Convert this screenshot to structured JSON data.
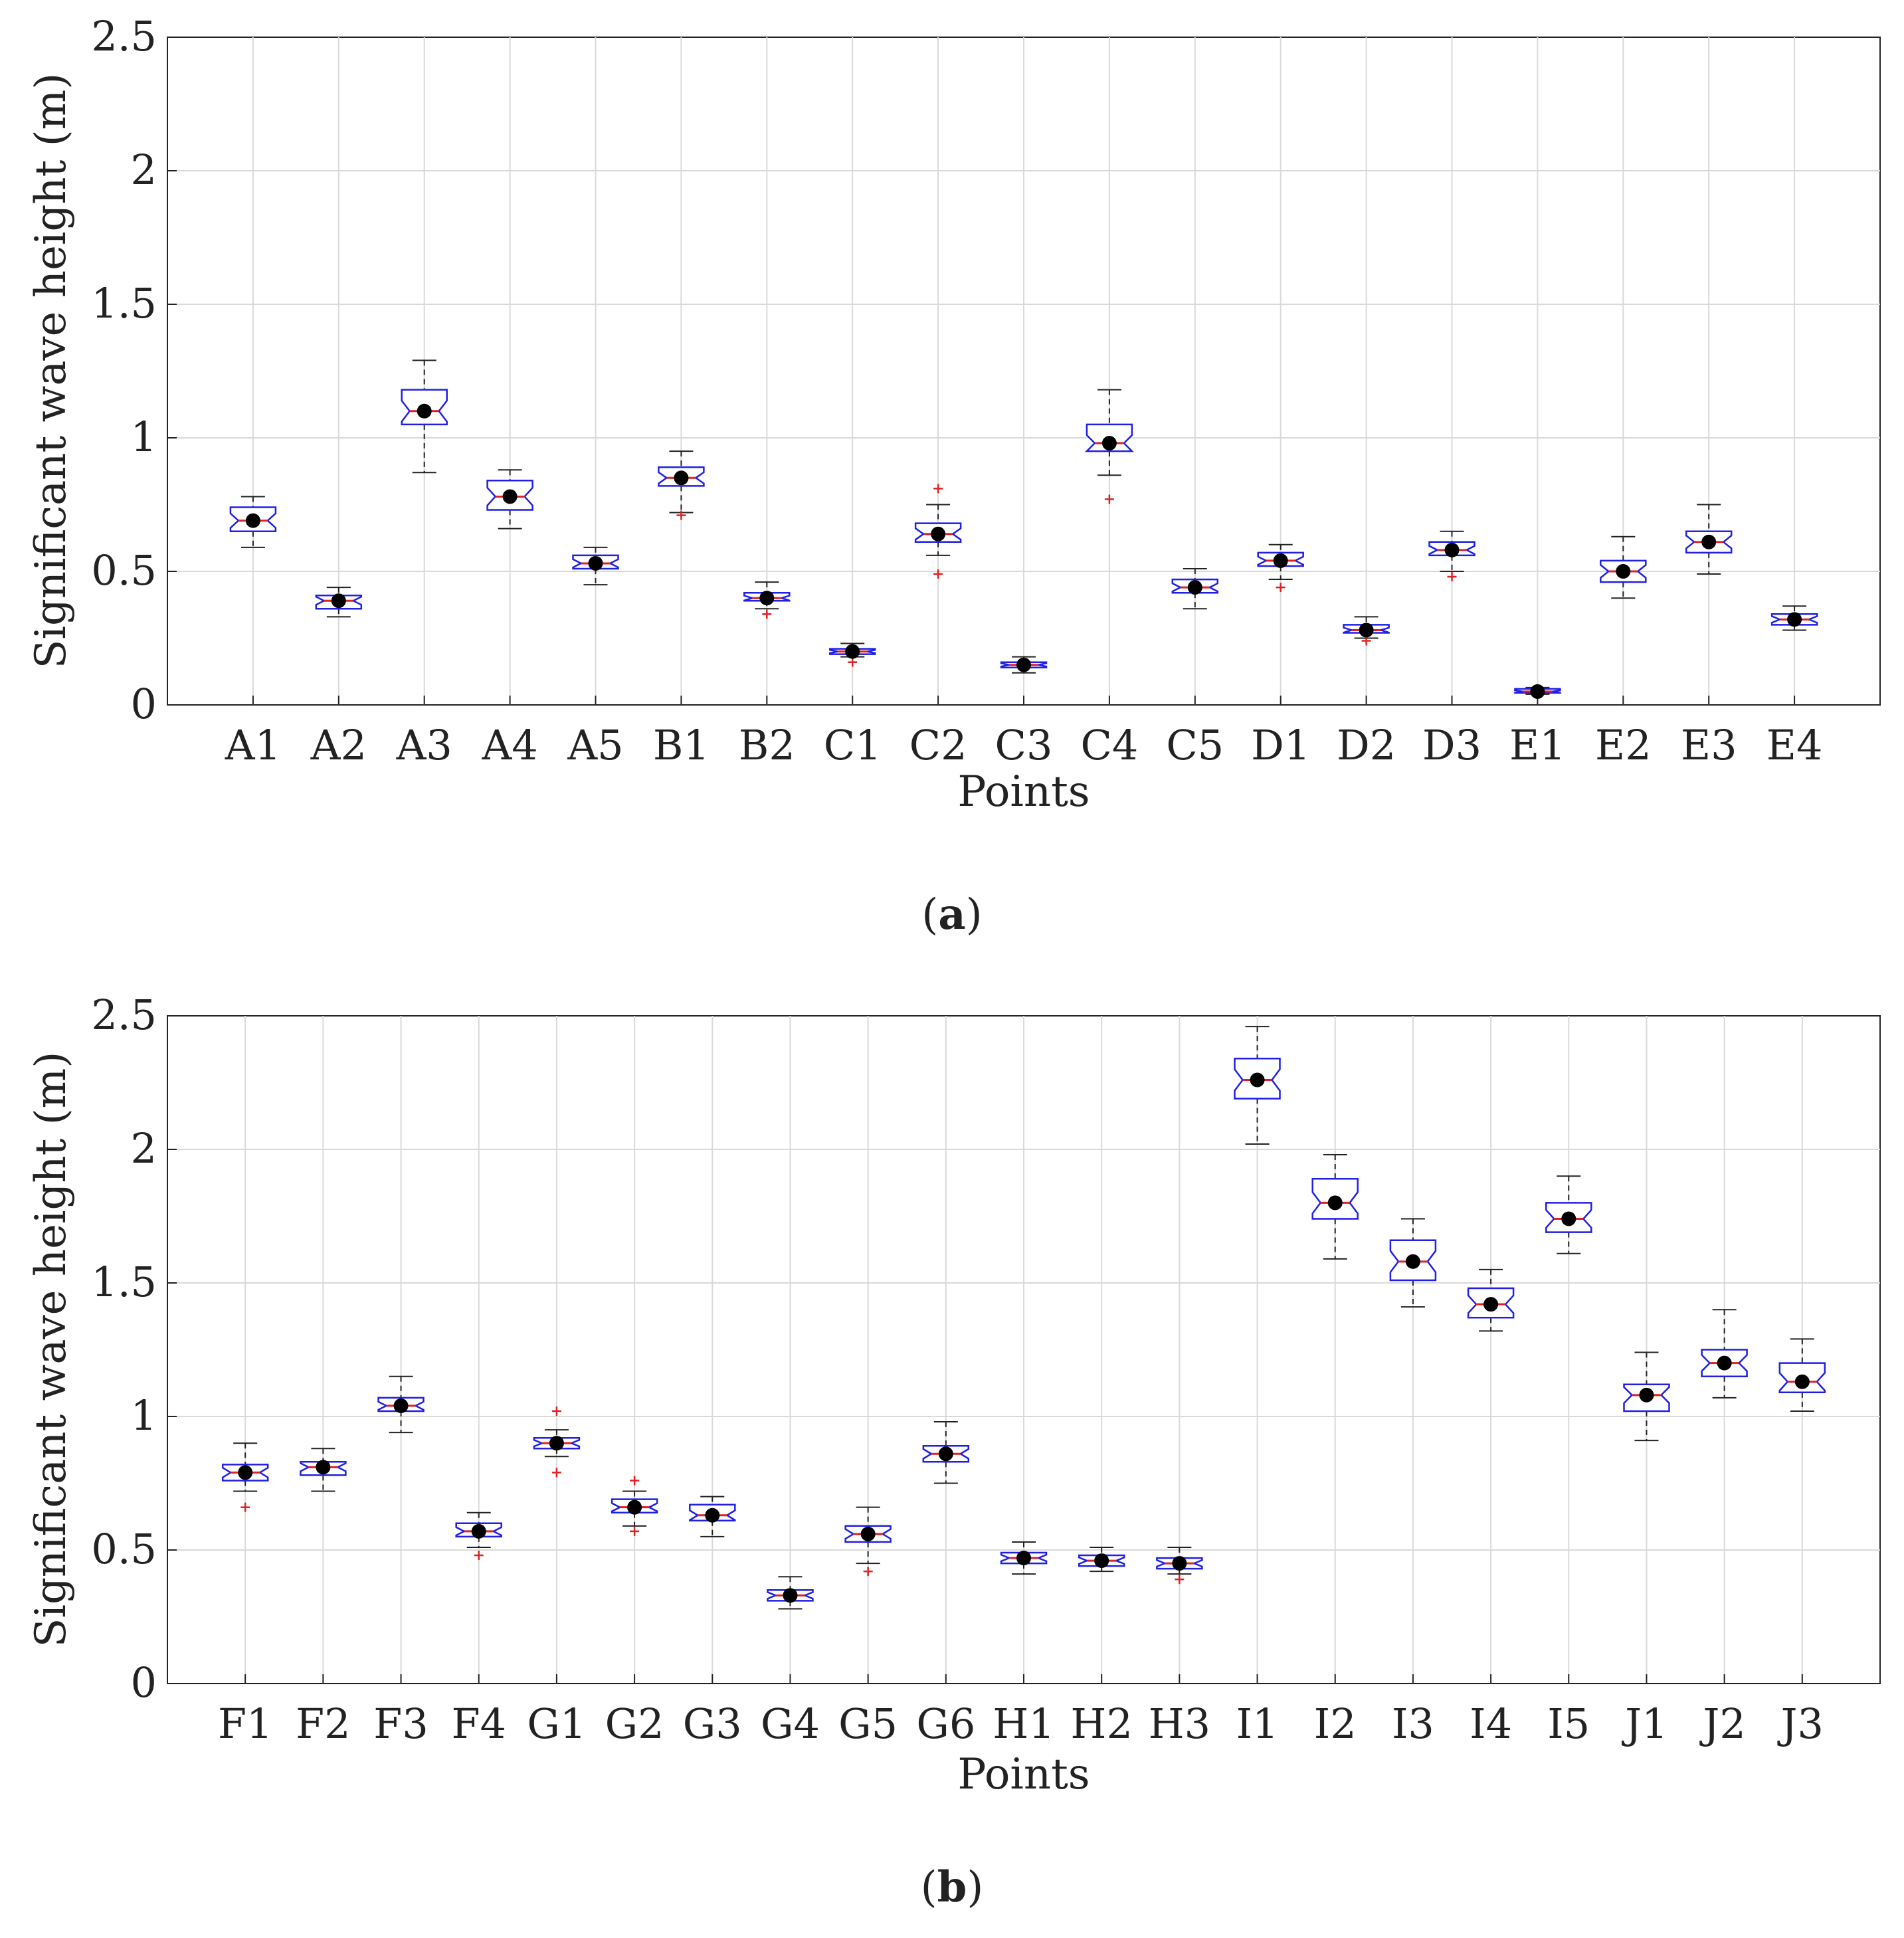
{
  "figure": {
    "panels": [
      {
        "label_open": "(",
        "label": "a",
        "label_close": ")"
      },
      {
        "label_open": "(",
        "label": "b",
        "label_close": ")"
      }
    ]
  },
  "colors": {
    "box": "#1f1fe6",
    "median": "#e02020",
    "whisker": "#222222",
    "outlier": "#e02020",
    "mean": "#000000",
    "grid": "#d9d9d9",
    "axis": "#222222"
  },
  "chart_data": [
    {
      "type": "box",
      "title": "",
      "xlabel": "Points",
      "ylabel": "Significant wave height (m)",
      "ylim": [
        0,
        2.5
      ],
      "yticks": [
        "0",
        "0.5",
        "1",
        "1.5",
        "2",
        "2.5"
      ],
      "grid": true,
      "categories": [
        "A1",
        "A2",
        "A3",
        "A4",
        "A5",
        "B1",
        "B2",
        "C1",
        "C2",
        "C3",
        "C4",
        "C5",
        "D1",
        "D2",
        "D3",
        "E1",
        "E2",
        "E3",
        "E4"
      ],
      "boxes": [
        {
          "min": 0.59,
          "q1": 0.65,
          "median": 0.69,
          "q3": 0.74,
          "max": 0.78,
          "mean": 0.69,
          "outliers": []
        },
        {
          "min": 0.33,
          "q1": 0.36,
          "median": 0.39,
          "q3": 0.41,
          "max": 0.44,
          "mean": 0.39,
          "outliers": []
        },
        {
          "min": 0.87,
          "q1": 1.05,
          "median": 1.1,
          "q3": 1.18,
          "max": 1.29,
          "mean": 1.1,
          "outliers": []
        },
        {
          "min": 0.66,
          "q1": 0.73,
          "median": 0.78,
          "q3": 0.84,
          "max": 0.88,
          "mean": 0.78,
          "outliers": []
        },
        {
          "min": 0.45,
          "q1": 0.51,
          "median": 0.53,
          "q3": 0.56,
          "max": 0.59,
          "mean": 0.53,
          "outliers": []
        },
        {
          "min": 0.72,
          "q1": 0.82,
          "median": 0.85,
          "q3": 0.89,
          "max": 0.95,
          "mean": 0.85,
          "outliers": [
            0.71
          ]
        },
        {
          "min": 0.36,
          "q1": 0.39,
          "median": 0.4,
          "q3": 0.42,
          "max": 0.46,
          "mean": 0.4,
          "outliers": [
            0.34
          ]
        },
        {
          "min": 0.18,
          "q1": 0.19,
          "median": 0.2,
          "q3": 0.21,
          "max": 0.23,
          "mean": 0.2,
          "outliers": [
            0.16
          ]
        },
        {
          "min": 0.56,
          "q1": 0.61,
          "median": 0.64,
          "q3": 0.68,
          "max": 0.75,
          "mean": 0.64,
          "outliers": [
            0.49,
            0.81
          ]
        },
        {
          "min": 0.12,
          "q1": 0.14,
          "median": 0.15,
          "q3": 0.16,
          "max": 0.18,
          "mean": 0.15,
          "outliers": []
        },
        {
          "min": 0.86,
          "q1": 0.95,
          "median": 0.98,
          "q3": 1.05,
          "max": 1.18,
          "mean": 0.98,
          "outliers": [
            0.77
          ]
        },
        {
          "min": 0.36,
          "q1": 0.42,
          "median": 0.44,
          "q3": 0.47,
          "max": 0.51,
          "mean": 0.44,
          "outliers": []
        },
        {
          "min": 0.47,
          "q1": 0.52,
          "median": 0.54,
          "q3": 0.57,
          "max": 0.6,
          "mean": 0.54,
          "outliers": [
            0.44
          ]
        },
        {
          "min": 0.25,
          "q1": 0.27,
          "median": 0.28,
          "q3": 0.3,
          "max": 0.33,
          "mean": 0.28,
          "outliers": [
            0.24
          ]
        },
        {
          "min": 0.5,
          "q1": 0.56,
          "median": 0.58,
          "q3": 0.61,
          "max": 0.65,
          "mean": 0.58,
          "outliers": [
            0.48
          ]
        },
        {
          "min": 0.04,
          "q1": 0.045,
          "median": 0.05,
          "q3": 0.06,
          "max": 0.065,
          "mean": 0.05,
          "outliers": []
        },
        {
          "min": 0.4,
          "q1": 0.46,
          "median": 0.5,
          "q3": 0.54,
          "max": 0.63,
          "mean": 0.5,
          "outliers": []
        },
        {
          "min": 0.49,
          "q1": 0.57,
          "median": 0.61,
          "q3": 0.65,
          "max": 0.75,
          "mean": 0.61,
          "outliers": []
        },
        {
          "min": 0.28,
          "q1": 0.3,
          "median": 0.32,
          "q3": 0.34,
          "max": 0.37,
          "mean": 0.32,
          "outliers": []
        }
      ]
    },
    {
      "type": "box",
      "title": "",
      "xlabel": "Points",
      "ylabel": "Significant wave height (m)",
      "ylim": [
        0,
        2.5
      ],
      "yticks": [
        "0",
        "0.5",
        "1",
        "1.5",
        "2",
        "2.5"
      ],
      "grid": true,
      "categories": [
        "F1",
        "F2",
        "F3",
        "F4",
        "G1",
        "G2",
        "G3",
        "G4",
        "G5",
        "G6",
        "H1",
        "H2",
        "H3",
        "I1",
        "I2",
        "I3",
        "I4",
        "I5",
        "J1",
        "J2",
        "J3"
      ],
      "boxes": [
        {
          "min": 0.72,
          "q1": 0.76,
          "median": 0.79,
          "q3": 0.82,
          "max": 0.9,
          "mean": 0.79,
          "outliers": [
            0.66
          ]
        },
        {
          "min": 0.72,
          "q1": 0.78,
          "median": 0.81,
          "q3": 0.83,
          "max": 0.88,
          "mean": 0.81,
          "outliers": []
        },
        {
          "min": 0.94,
          "q1": 1.02,
          "median": 1.04,
          "q3": 1.07,
          "max": 1.15,
          "mean": 1.04,
          "outliers": []
        },
        {
          "min": 0.51,
          "q1": 0.55,
          "median": 0.57,
          "q3": 0.6,
          "max": 0.64,
          "mean": 0.57,
          "outliers": [
            0.48
          ]
        },
        {
          "min": 0.85,
          "q1": 0.88,
          "median": 0.9,
          "q3": 0.92,
          "max": 0.95,
          "mean": 0.9,
          "outliers": [
            0.79,
            1.02
          ]
        },
        {
          "min": 0.59,
          "q1": 0.64,
          "median": 0.66,
          "q3": 0.69,
          "max": 0.72,
          "mean": 0.66,
          "outliers": [
            0.57,
            0.76
          ]
        },
        {
          "min": 0.55,
          "q1": 0.61,
          "median": 0.63,
          "q3": 0.67,
          "max": 0.7,
          "mean": 0.63,
          "outliers": []
        },
        {
          "min": 0.28,
          "q1": 0.31,
          "median": 0.33,
          "q3": 0.35,
          "max": 0.4,
          "mean": 0.33,
          "outliers": []
        },
        {
          "min": 0.45,
          "q1": 0.53,
          "median": 0.56,
          "q3": 0.59,
          "max": 0.66,
          "mean": 0.56,
          "outliers": [
            0.42
          ]
        },
        {
          "min": 0.75,
          "q1": 0.83,
          "median": 0.86,
          "q3": 0.89,
          "max": 0.98,
          "mean": 0.86,
          "outliers": []
        },
        {
          "min": 0.41,
          "q1": 0.45,
          "median": 0.47,
          "q3": 0.49,
          "max": 0.53,
          "mean": 0.47,
          "outliers": []
        },
        {
          "min": 0.42,
          "q1": 0.44,
          "median": 0.46,
          "q3": 0.48,
          "max": 0.51,
          "mean": 0.46,
          "outliers": []
        },
        {
          "min": 0.41,
          "q1": 0.43,
          "median": 0.45,
          "q3": 0.47,
          "max": 0.51,
          "mean": 0.45,
          "outliers": [
            0.39
          ]
        },
        {
          "min": 2.02,
          "q1": 2.19,
          "median": 2.26,
          "q3": 2.34,
          "max": 2.46,
          "mean": 2.26,
          "outliers": []
        },
        {
          "min": 1.59,
          "q1": 1.74,
          "median": 1.8,
          "q3": 1.89,
          "max": 1.98,
          "mean": 1.8,
          "outliers": []
        },
        {
          "min": 1.41,
          "q1": 1.51,
          "median": 1.58,
          "q3": 1.66,
          "max": 1.74,
          "mean": 1.58,
          "outliers": []
        },
        {
          "min": 1.32,
          "q1": 1.37,
          "median": 1.42,
          "q3": 1.48,
          "max": 1.55,
          "mean": 1.42,
          "outliers": []
        },
        {
          "min": 1.61,
          "q1": 1.69,
          "median": 1.74,
          "q3": 1.8,
          "max": 1.9,
          "mean": 1.74,
          "outliers": []
        },
        {
          "min": 0.91,
          "q1": 1.02,
          "median": 1.08,
          "q3": 1.12,
          "max": 1.24,
          "mean": 1.08,
          "outliers": []
        },
        {
          "min": 1.07,
          "q1": 1.15,
          "median": 1.2,
          "q3": 1.25,
          "max": 1.4,
          "mean": 1.2,
          "outliers": []
        },
        {
          "min": 1.02,
          "q1": 1.09,
          "median": 1.13,
          "q3": 1.2,
          "max": 1.29,
          "mean": 1.13,
          "outliers": []
        }
      ]
    }
  ]
}
